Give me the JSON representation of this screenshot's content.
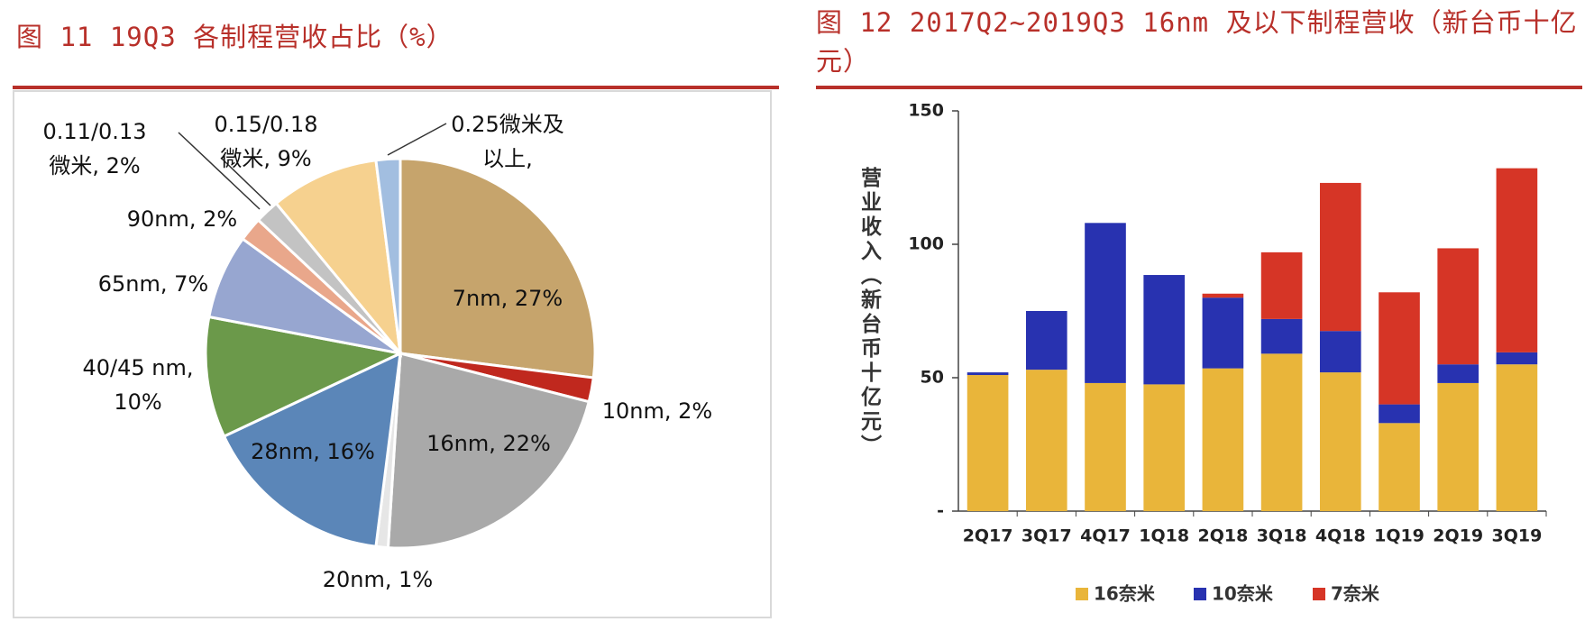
{
  "chart_data": [
    {
      "type": "pie",
      "title": "图 11 19Q3 各制程营收占比（%）",
      "categories": [
        "7nm",
        "10nm",
        "16nm",
        "20nm",
        "28nm",
        "40/45 nm",
        "65nm",
        "90nm",
        "0.11/0.13微米",
        "0.15/0.18微米",
        "0.25微米及以上"
      ],
      "labels": [
        "7nm, 27%",
        "10nm, 2%",
        "16nm, 22%",
        "20nm, 1%",
        "28nm, 16%",
        "40/45 nm,\n10%",
        "65nm, 7%",
        "90nm, 2%",
        "0.11/0.13\n微米, 2%",
        "0.15/0.18\n微米, 9%",
        "0.25微米及\n以上,"
      ],
      "values": [
        27,
        2,
        22,
        1,
        16,
        10,
        7,
        2,
        2,
        9,
        2
      ],
      "colors": [
        "#c6a46c",
        "#c0281e",
        "#a9a9a9",
        "#e6e6e6",
        "#5b86b8",
        "#6b994a",
        "#97a6d0",
        "#e9a78b",
        "#c3c3c3",
        "#f6d18f",
        "#a2bee0"
      ]
    },
    {
      "type": "bar",
      "stacked": true,
      "title": "图 12 2017Q2~2019Q3 16nm 及以下制程营收（新台币十亿元）",
      "y_label": "营业收入（新台币十亿元）",
      "categories": [
        "2Q17",
        "3Q17",
        "4Q17",
        "1Q18",
        "2Q18",
        "3Q18",
        "4Q18",
        "1Q19",
        "2Q19",
        "3Q19"
      ],
      "series": [
        {
          "name": "16奈米",
          "color": "#e9b53a",
          "values": [
            51,
            53,
            48,
            47.5,
            53.5,
            59,
            52,
            33,
            48,
            55
          ]
        },
        {
          "name": "10奈米",
          "color": "#2832b0",
          "values": [
            1,
            22,
            60,
            41,
            26.5,
            13,
            15.5,
            7,
            7,
            4.5
          ]
        },
        {
          "name": "7奈米",
          "color": "#d63526",
          "values": [
            0,
            0,
            0,
            0,
            1.5,
            25,
            55.5,
            42,
            43.5,
            69
          ]
        }
      ],
      "ylim": [
        0,
        150
      ],
      "yticks": [
        {
          "value": 0,
          "label": "-"
        },
        50,
        100,
        150
      ]
    }
  ]
}
